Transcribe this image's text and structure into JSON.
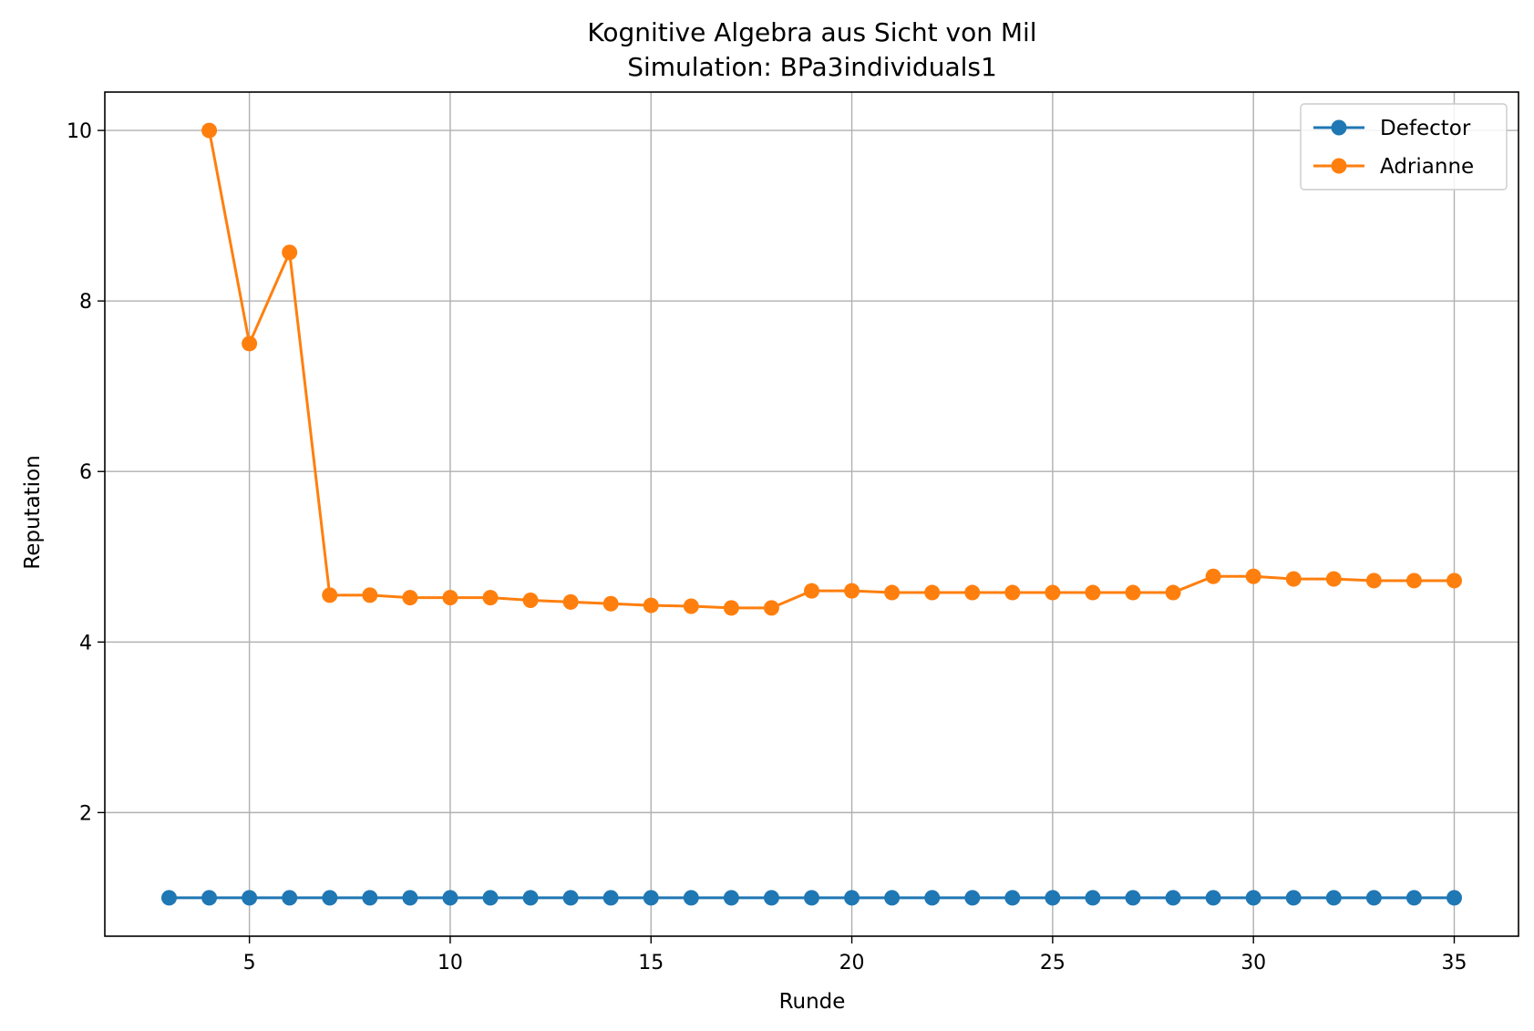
{
  "chart_data": {
    "type": "line",
    "title": "Kognitive Algebra aus Sicht von Mil",
    "subtitle": "Simulation: BPa3individuals1",
    "xlabel": "Runde",
    "ylabel": "Reputation",
    "xlim": [
      1.4,
      36.6
    ],
    "ylim": [
      0.55,
      10.45
    ],
    "xticks": [
      5,
      10,
      15,
      20,
      25,
      30,
      35
    ],
    "yticks": [
      2,
      4,
      6,
      8,
      10
    ],
    "grid": true,
    "legend_position": "top-right",
    "series": [
      {
        "name": "Defector",
        "color": "#1f77b4",
        "x": [
          3,
          4,
          5,
          6,
          7,
          8,
          9,
          10,
          11,
          12,
          13,
          14,
          15,
          16,
          17,
          18,
          19,
          20,
          21,
          22,
          23,
          24,
          25,
          26,
          27,
          28,
          29,
          30,
          31,
          32,
          33,
          34,
          35
        ],
        "y": [
          1,
          1,
          1,
          1,
          1,
          1,
          1,
          1,
          1,
          1,
          1,
          1,
          1,
          1,
          1,
          1,
          1,
          1,
          1,
          1,
          1,
          1,
          1,
          1,
          1,
          1,
          1,
          1,
          1,
          1,
          1,
          1,
          1
        ]
      },
      {
        "name": "Adrianne",
        "color": "#ff7f0e",
        "x": [
          4,
          5,
          6,
          7,
          8,
          9,
          10,
          11,
          12,
          13,
          14,
          15,
          16,
          17,
          18,
          19,
          20,
          21,
          22,
          23,
          24,
          25,
          26,
          27,
          28,
          29,
          30,
          31,
          32,
          33,
          34,
          35
        ],
        "y": [
          10.0,
          7.5,
          8.57,
          4.55,
          4.55,
          4.52,
          4.52,
          4.52,
          4.49,
          4.47,
          4.45,
          4.43,
          4.42,
          4.4,
          4.4,
          4.6,
          4.6,
          4.58,
          4.58,
          4.58,
          4.58,
          4.58,
          4.58,
          4.58,
          4.58,
          4.77,
          4.77,
          4.74,
          4.74,
          4.72,
          4.72,
          4.72
        ]
      }
    ]
  }
}
